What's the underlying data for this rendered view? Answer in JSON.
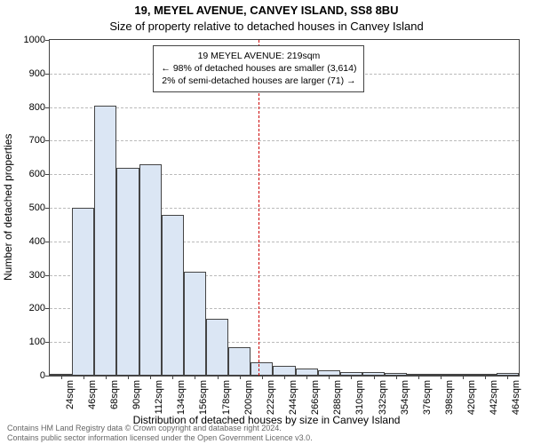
{
  "titles": {
    "line1": "19, MEYEL AVENUE, CANVEY ISLAND, SS8 8BU",
    "line2": "Size of property relative to detached houses in Canvey Island"
  },
  "chart": {
    "type": "histogram",
    "background_color": "#ffffff",
    "axis_color": "#444444",
    "grid_color": "#bbbbbb",
    "bar_fill": "#dbe6f4",
    "bar_border": "#444444",
    "ylabel": "Number of detached properties",
    "xlabel": "Distribution of detached houses by size in Canvey Island",
    "label_fontsize": 12,
    "tick_fontsize": 11,
    "title_fontsize": 13,
    "x_range": [
      13,
      475
    ],
    "ylim": [
      0,
      1000
    ],
    "ytick_step": 100,
    "yticks": [
      0,
      100,
      200,
      300,
      400,
      500,
      600,
      700,
      800,
      900,
      1000
    ],
    "xticks": [
      24,
      46,
      68,
      90,
      112,
      134,
      156,
      178,
      200,
      222,
      244,
      266,
      288,
      310,
      332,
      354,
      376,
      398,
      420,
      442,
      464
    ],
    "xtick_unit": "sqm",
    "bar_bin_width": 22,
    "bars": [
      {
        "x_start": 13,
        "value": 5
      },
      {
        "x_start": 35,
        "value": 500
      },
      {
        "x_start": 57,
        "value": 805
      },
      {
        "x_start": 79,
        "value": 620
      },
      {
        "x_start": 101,
        "value": 630
      },
      {
        "x_start": 123,
        "value": 480
      },
      {
        "x_start": 145,
        "value": 310
      },
      {
        "x_start": 167,
        "value": 170
      },
      {
        "x_start": 189,
        "value": 85
      },
      {
        "x_start": 211,
        "value": 40
      },
      {
        "x_start": 233,
        "value": 30
      },
      {
        "x_start": 255,
        "value": 20
      },
      {
        "x_start": 277,
        "value": 15
      },
      {
        "x_start": 299,
        "value": 10
      },
      {
        "x_start": 321,
        "value": 10
      },
      {
        "x_start": 343,
        "value": 8
      },
      {
        "x_start": 365,
        "value": 6
      },
      {
        "x_start": 387,
        "value": 5
      },
      {
        "x_start": 409,
        "value": 3
      },
      {
        "x_start": 431,
        "value": 2
      },
      {
        "x_start": 453,
        "value": 8
      }
    ],
    "marker": {
      "x": 219,
      "color": "#cc0000"
    },
    "annotation": {
      "line1": "19 MEYEL AVENUE: 219sqm",
      "line2": "← 98% of detached houses are smaller (3,614)",
      "line3": "2% of semi-detached houses are larger (71) →",
      "border_color": "#444444",
      "text_color": "#000000",
      "fontsize": 10.5
    }
  },
  "footer": {
    "line1": "Contains HM Land Registry data © Crown copyright and database right 2024.",
    "line2": "Contains public sector information licensed under the Open Government Licence v3.0.",
    "text_color": "#666666",
    "fontsize": 9
  }
}
